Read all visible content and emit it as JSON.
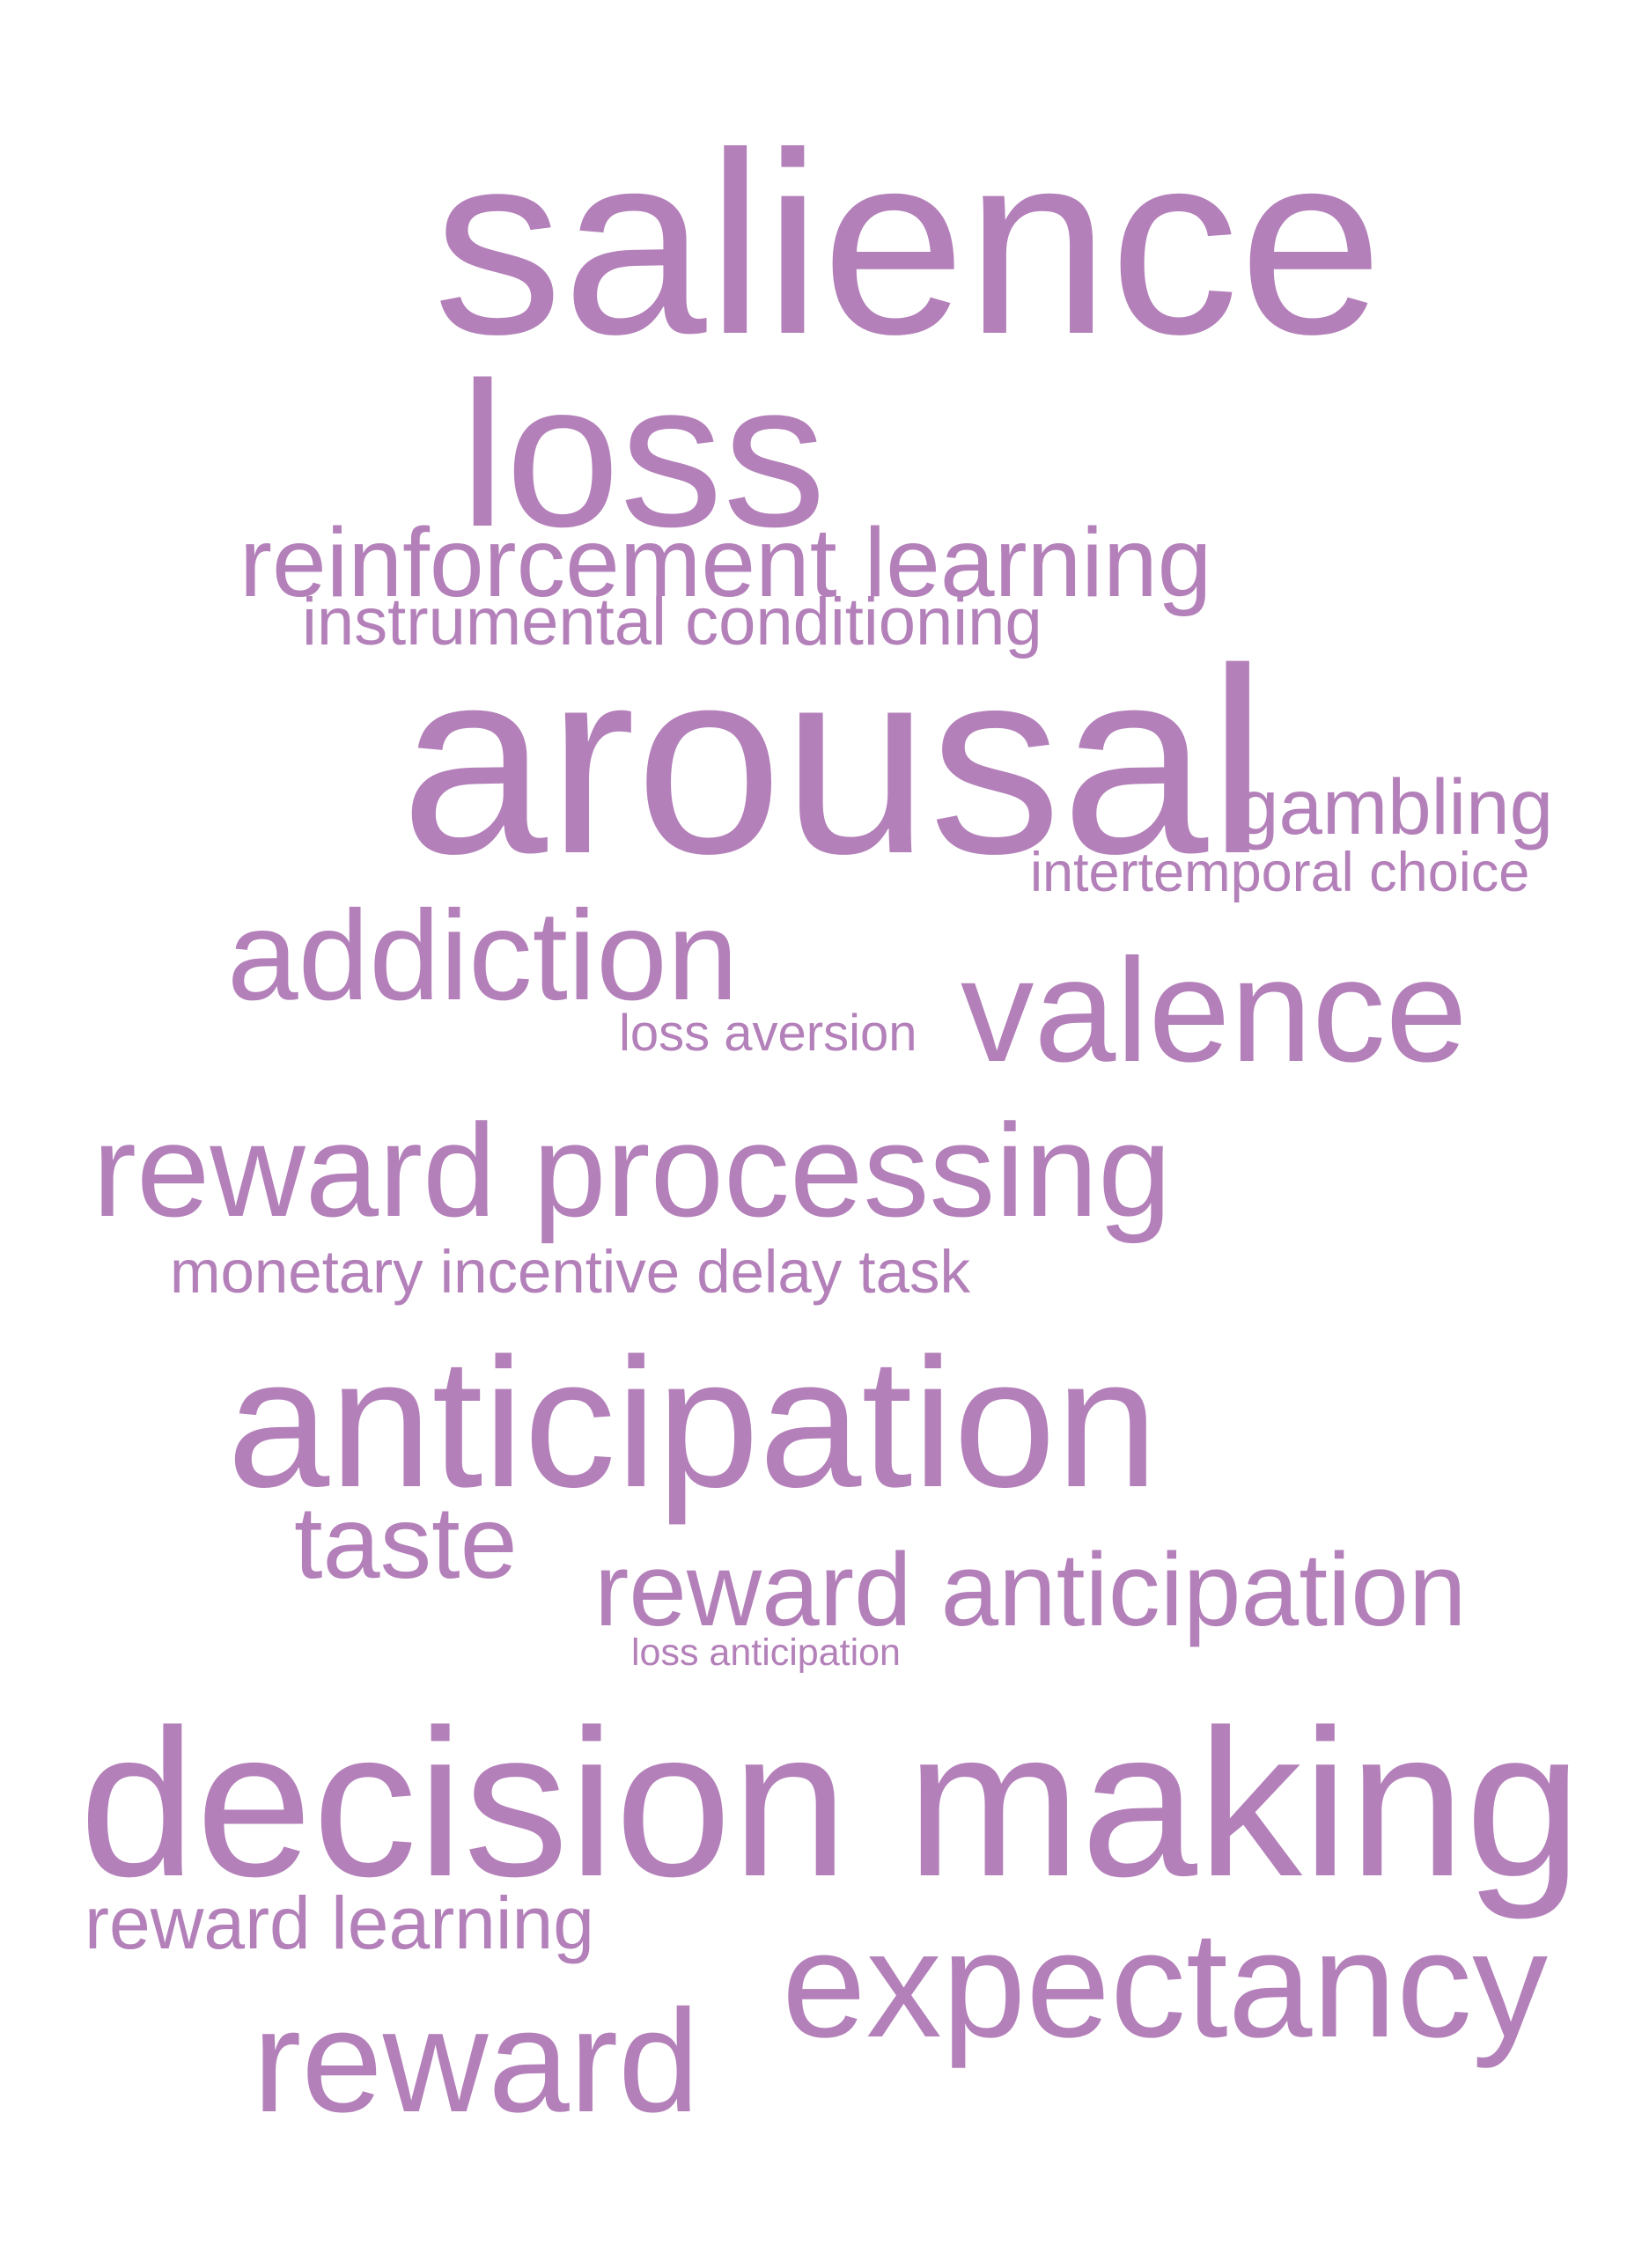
{
  "word_cloud": {
    "color": "#b380b9",
    "background": "#ffffff",
    "words": {
      "salience": "salience",
      "loss": "loss",
      "reinforcement_learning": "reinforcement learning",
      "instrumental_conditioning": "instrumental conditioning",
      "arousal": "arousal",
      "gambling": "gambling",
      "intertemporal_choice": "intertemporal choice",
      "addiction": "addiction",
      "valence": "valence",
      "loss_aversion": "loss aversion",
      "reward_processing": "reward processing",
      "monetary_incentive_delay_task": "monetary incentive delay task",
      "anticipation": "anticipation",
      "taste": "taste",
      "reward_anticipation": "reward anticipation",
      "loss_anticipation": "loss anticipation",
      "decision_making": "decision making",
      "reward_learning": "reward learning",
      "expectancy": "expectancy",
      "reward": "reward"
    }
  }
}
